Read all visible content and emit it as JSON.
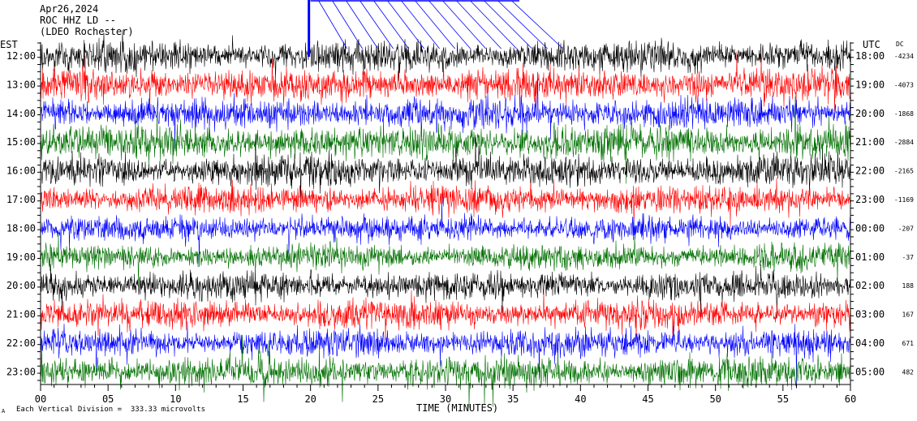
{
  "header": {
    "date": "Apr26,2024",
    "station": "ROC HHZ LD --",
    "network": "(LDEO Rochester)"
  },
  "footer": {
    "scale_note": "Each Vertical Division =  333.33 microvolts",
    "corner_mark": "A"
  },
  "chart_data": {
    "type": "line",
    "title": "",
    "xlabel": "TIME (MINUTES)",
    "left_axis_label": "EST",
    "right_axis_label": "UTC",
    "dc_label": "DC",
    "xlim": [
      0,
      60
    ],
    "x_ticks": [
      "00",
      "05",
      "10",
      "15",
      "20",
      "25",
      "30",
      "35",
      "40",
      "45",
      "50",
      "55",
      "60"
    ],
    "trace_colors": [
      "#000000",
      "#ff0000",
      "#0000ff",
      "#007000"
    ],
    "rows": [
      {
        "est": "12:00",
        "utc": "18:00",
        "dc": "-4234"
      },
      {
        "est": "13:00",
        "utc": "19:00",
        "dc": "-4073"
      },
      {
        "est": "14:00",
        "utc": "20:00",
        "dc": "-1868"
      },
      {
        "est": "15:00",
        "utc": "21:00",
        "dc": "-2884"
      },
      {
        "est": "16:00",
        "utc": "22:00",
        "dc": "-2165"
      },
      {
        "est": "17:00",
        "utc": "23:00",
        "dc": "-1169"
      },
      {
        "est": "18:00",
        "utc": "00:00",
        "dc": "-207"
      },
      {
        "est": "19:00",
        "utc": "01:00",
        "dc": "-37"
      },
      {
        "est": "20:00",
        "utc": "02:00",
        "dc": "188"
      },
      {
        "est": "21:00",
        "utc": "03:00",
        "dc": "167"
      },
      {
        "est": "22:00",
        "utc": "04:00",
        "dc": "671"
      },
      {
        "est": "23:00",
        "utc": "05:00",
        "dc": "482"
      }
    ]
  }
}
